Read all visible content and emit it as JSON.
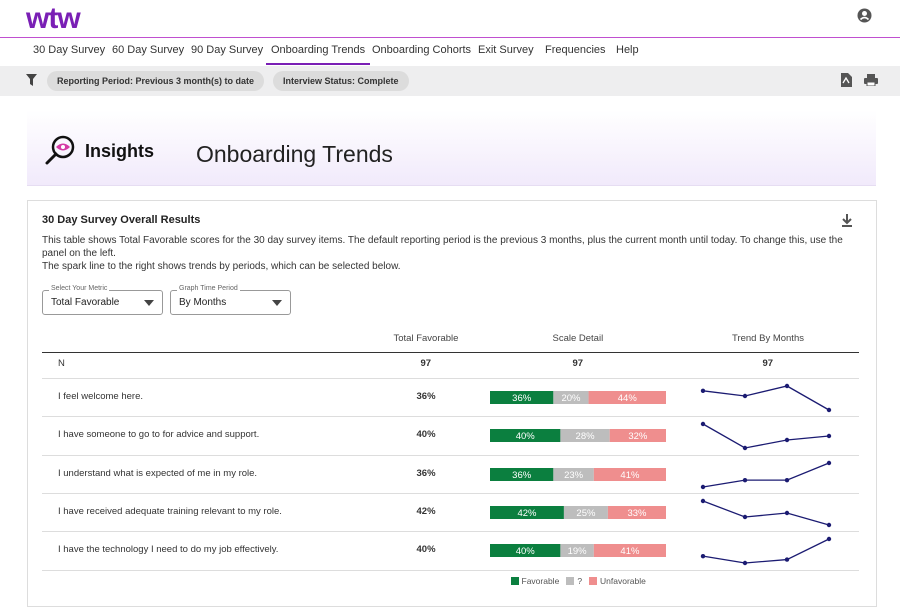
{
  "header": {
    "logo": "wtw"
  },
  "nav": {
    "tabs": [
      "30 Day Survey",
      "60 Day Survey",
      "90 Day Survey",
      "Onboarding Trends",
      "Onboarding Cohorts",
      "Exit Survey",
      "Frequencies",
      "Help"
    ],
    "active": 3
  },
  "filters": [
    "Reporting Period: Previous 3 month(s) to date",
    "Interview Status: Complete"
  ],
  "banner": {
    "brand": "Insights",
    "title": "Onboarding Trends"
  },
  "card": {
    "title": "30 Day Survey Overall Results",
    "description": [
      "This table shows Total Favorable scores for the 30 day survey items. The default reporting period is the previous 3 months, plus the current month until today. To change this, use the panel on the left.",
      "The spark line to the right shows trends by periods, which can be selected below."
    ],
    "controls": [
      {
        "label": "Select Your Metric",
        "value": "Total Favorable"
      },
      {
        "label": "Graph Time Period",
        "value": "By Months"
      }
    ]
  },
  "table": {
    "columns": [
      "Total Favorable",
      "Scale Detail",
      "Trend By Months"
    ],
    "n_row": {
      "label": "N",
      "values": [
        97,
        97,
        97
      ]
    },
    "rows": [
      {
        "item": "I feel welcome here.",
        "favorable": "36%",
        "scale": [
          36,
          20,
          44
        ],
        "scale_labels": [
          "36%",
          "20%",
          "44%"
        ],
        "trend": [
          38.8,
          37.5,
          40,
          34
        ]
      },
      {
        "item": "I have someone to go to for advice and support.",
        "favorable": "40%",
        "scale": [
          40,
          28,
          32
        ],
        "scale_labels": [
          "40%",
          "28%",
          "32%"
        ],
        "trend": [
          44,
          38,
          40,
          41
        ]
      },
      {
        "item": "I understand what is expected of me in my role.",
        "favorable": "36%",
        "scale": [
          36,
          23,
          41
        ],
        "scale_labels": [
          "36%",
          "23%",
          "41%"
        ],
        "trend": [
          33,
          35,
          35,
          40
        ]
      },
      {
        "item": "I have received adequate training relevant to my role.",
        "favorable": "42%",
        "scale": [
          42,
          25,
          33
        ],
        "scale_labels": [
          "42%",
          "25%",
          "33%"
        ],
        "trend": [
          46,
          42,
          43,
          40
        ]
      },
      {
        "item": "I have the technology I need to do my job effectively.",
        "favorable": "40%",
        "scale": [
          40,
          19,
          41
        ],
        "scale_labels": [
          "40%",
          "19%",
          "41%"
        ],
        "trend": [
          37,
          35,
          36,
          42
        ]
      }
    ],
    "legend": [
      {
        "name": "Favorable",
        "color": "#0b7f3f"
      },
      {
        "name": "?",
        "color": "#bdbdbd"
      },
      {
        "name": "Unfavorable",
        "color": "#ef8e8e"
      }
    ],
    "trend_color": "#1b1b72"
  }
}
